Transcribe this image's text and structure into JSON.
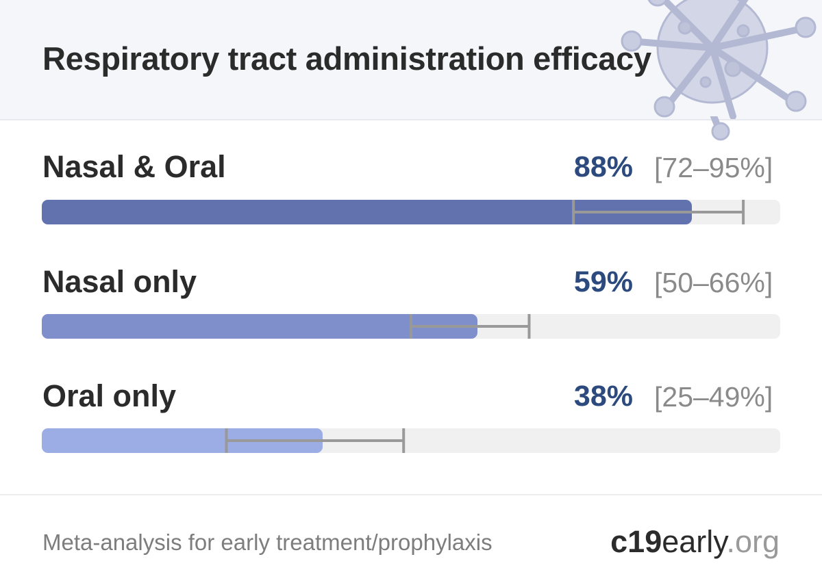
{
  "title": "Respiratory tract administration efficacy",
  "footer": {
    "text": "Meta-analysis for early treatment/prophylaxis",
    "brand_main": "c19",
    "brand_mid": "early",
    "brand_tld": ".org"
  },
  "icons": {
    "decoration": "virus-icon"
  },
  "colors": {
    "value_text": "#2c4a7e",
    "track": "#f0f0f0",
    "error_bar": "#999999"
  },
  "chart_data": {
    "type": "bar",
    "orientation": "horizontal",
    "xlim": [
      0,
      100
    ],
    "categories": [
      "Nasal & Oral",
      "Nasal only",
      "Oral only"
    ],
    "values": [
      88,
      59,
      38
    ],
    "value_labels": [
      "88%",
      "59%",
      "38%"
    ],
    "ci": [
      [
        72,
        95
      ],
      [
        50,
        66
      ],
      [
        25,
        49
      ]
    ],
    "ci_labels": [
      "[72–95%]",
      "[50–66%]",
      "[25–49%]"
    ],
    "bar_colors": [
      "#6272ae",
      "#7e8fcb",
      "#9cacE5"
    ]
  }
}
